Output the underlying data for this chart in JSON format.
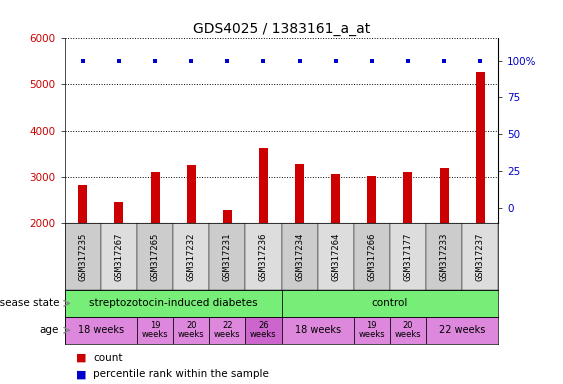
{
  "title": "GDS4025 / 1383161_a_at",
  "samples": [
    "GSM317235",
    "GSM317267",
    "GSM317265",
    "GSM317232",
    "GSM317231",
    "GSM317236",
    "GSM317234",
    "GSM317264",
    "GSM317266",
    "GSM317177",
    "GSM317233",
    "GSM317237"
  ],
  "counts": [
    2820,
    2450,
    3100,
    3250,
    2280,
    3620,
    3270,
    3060,
    3020,
    3100,
    3180,
    5280
  ],
  "percentiles": [
    100,
    100,
    100,
    100,
    100,
    100,
    100,
    100,
    100,
    100,
    100,
    100
  ],
  "bar_color": "#cc0000",
  "percentile_color": "#0000cc",
  "ylim_left": [
    2000,
    6000
  ],
  "ylim_right": [
    -10,
    115
  ],
  "yticks_left": [
    2000,
    3000,
    4000,
    5000,
    6000
  ],
  "yticks_right": [
    0,
    25,
    50,
    75,
    100
  ],
  "grid_color": "#000000",
  "title_fontsize": 10,
  "tick_fontsize": 7.5,
  "sample_fontsize": 6.5,
  "bar_width": 0.25,
  "ds_groups": [
    {
      "label": "streptozotocin-induced diabetes",
      "xmin": 0,
      "xmax": 6,
      "color": "#77ee77"
    },
    {
      "label": "control",
      "xmin": 6,
      "xmax": 12,
      "color": "#77ee77"
    }
  ],
  "age_groups": [
    {
      "label": "18 weeks",
      "xmin": 0,
      "xmax": 2,
      "color": "#dd88dd",
      "small": false
    },
    {
      "label": "19\nweeks",
      "xmin": 2,
      "xmax": 3,
      "color": "#dd88dd",
      "small": true
    },
    {
      "label": "20\nweeks",
      "xmin": 3,
      "xmax": 4,
      "color": "#dd88dd",
      "small": true
    },
    {
      "label": "22\nweeks",
      "xmin": 4,
      "xmax": 5,
      "color": "#dd88dd",
      "small": true
    },
    {
      "label": "26\nweeks",
      "xmin": 5,
      "xmax": 6,
      "color": "#cc66cc",
      "small": true
    },
    {
      "label": "18 weeks",
      "xmin": 6,
      "xmax": 8,
      "color": "#dd88dd",
      "small": false
    },
    {
      "label": "19\nweeks",
      "xmin": 8,
      "xmax": 9,
      "color": "#dd88dd",
      "small": true
    },
    {
      "label": "20\nweeks",
      "xmin": 9,
      "xmax": 10,
      "color": "#dd88dd",
      "small": true
    },
    {
      "label": "22 weeks",
      "xmin": 10,
      "xmax": 12,
      "color": "#dd88dd",
      "small": false
    }
  ],
  "sample_bg_color": "#dddddd",
  "bg_color": "#ffffff"
}
